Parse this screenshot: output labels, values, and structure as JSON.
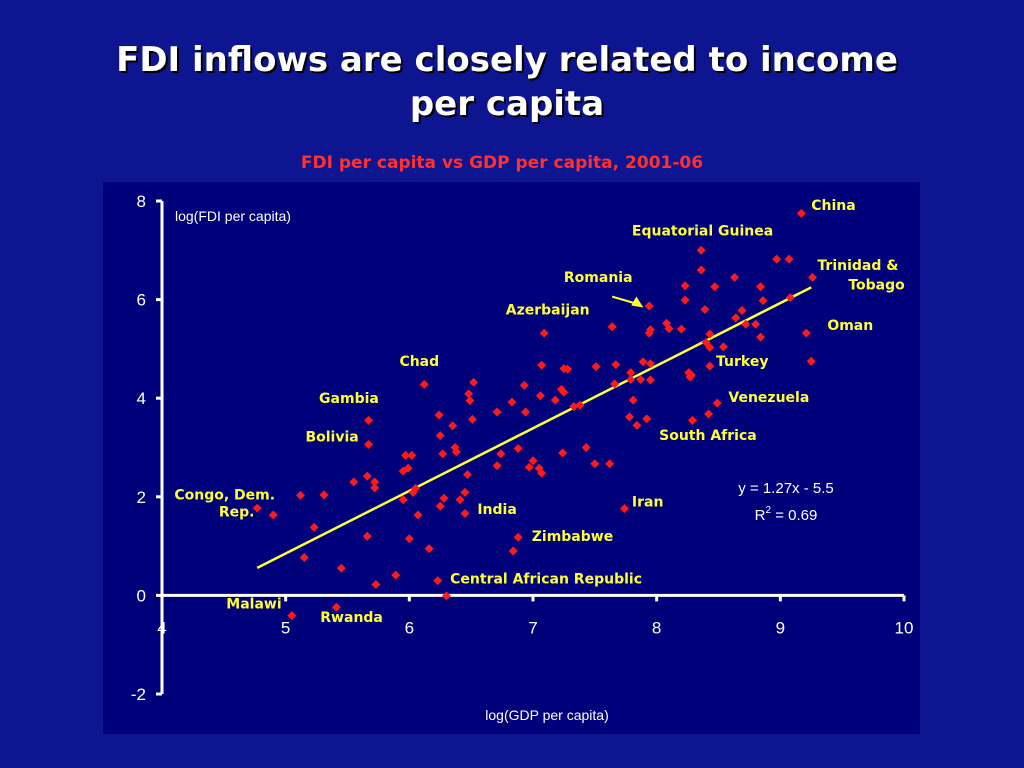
{
  "slide": {
    "title_line1": "FDI inflows are closely related to income",
    "title_line2": "per capita",
    "subtitle": "FDI per capita vs GDP per capita, 2001-06"
  },
  "colors": {
    "background": "#0d1591",
    "plot_panel": "#00007a",
    "title": "#ffffff",
    "subtitle": "#ff3030",
    "points": "#ff1a1a",
    "trendline": "#ffff33",
    "labels": "#ffff33",
    "axes": "#ffffff"
  },
  "chart_data": {
    "type": "scatter",
    "title": "FDI per capita vs GDP per capita, 2001-06",
    "xlabel": "log(GDP per capita)",
    "ylabel": "log(FDI per capita)",
    "xlim": [
      4,
      10
    ],
    "ylim": [
      -2,
      8
    ],
    "x_ticks": [
      "4",
      "5",
      "6",
      "7",
      "8",
      "9",
      "10"
    ],
    "y_ticks": [
      "-2",
      "0",
      "2",
      "4",
      "6",
      "8"
    ],
    "legend": "none",
    "grid": false,
    "trendline": {
      "equation": "y = 1.27x - 5.5",
      "r_squared_prefix": "R",
      "r_squared_sup": "2",
      "r_squared_value": " = 0.69",
      "slope": 1.27,
      "intercept": -5.5,
      "x_range": [
        4.77,
        9.25
      ]
    },
    "points": [
      {
        "x": 9.17,
        "y": 7.75
      },
      {
        "x": 8.36,
        "y": 7.0
      },
      {
        "x": 8.97,
        "y": 6.82
      },
      {
        "x": 9.07,
        "y": 6.82
      },
      {
        "x": 8.36,
        "y": 6.6
      },
      {
        "x": 8.63,
        "y": 6.45
      },
      {
        "x": 9.26,
        "y": 6.45
      },
      {
        "x": 8.23,
        "y": 6.28
      },
      {
        "x": 8.47,
        "y": 6.26
      },
      {
        "x": 8.84,
        "y": 6.26
      },
      {
        "x": 8.23,
        "y": 5.99
      },
      {
        "x": 8.86,
        "y": 5.98
      },
      {
        "x": 9.08,
        "y": 6.04
      },
      {
        "x": 7.94,
        "y": 5.87
      },
      {
        "x": 8.39,
        "y": 5.8
      },
      {
        "x": 8.69,
        "y": 5.78
      },
      {
        "x": 8.08,
        "y": 5.52
      },
      {
        "x": 8.72,
        "y": 5.5
      },
      {
        "x": 8.8,
        "y": 5.5
      },
      {
        "x": 7.64,
        "y": 5.45
      },
      {
        "x": 7.95,
        "y": 5.39
      },
      {
        "x": 8.1,
        "y": 5.41
      },
      {
        "x": 8.2,
        "y": 5.4
      },
      {
        "x": 7.94,
        "y": 5.32
      },
      {
        "x": 7.09,
        "y": 5.32
      },
      {
        "x": 8.43,
        "y": 5.3
      },
      {
        "x": 8.64,
        "y": 5.63
      },
      {
        "x": 9.21,
        "y": 5.32
      },
      {
        "x": 8.84,
        "y": 5.24
      },
      {
        "x": 8.4,
        "y": 5.13
      },
      {
        "x": 8.43,
        "y": 5.03
      },
      {
        "x": 8.54,
        "y": 5.04
      },
      {
        "x": 9.25,
        "y": 4.75
      },
      {
        "x": 7.89,
        "y": 4.74
      },
      {
        "x": 7.95,
        "y": 4.7
      },
      {
        "x": 7.67,
        "y": 4.68
      },
      {
        "x": 7.51,
        "y": 4.64
      },
      {
        "x": 7.07,
        "y": 4.67
      },
      {
        "x": 7.25,
        "y": 4.6
      },
      {
        "x": 7.28,
        "y": 4.59
      },
      {
        "x": 7.79,
        "y": 4.52
      },
      {
        "x": 8.26,
        "y": 4.52
      },
      {
        "x": 8.28,
        "y": 4.47
      },
      {
        "x": 8.27,
        "y": 4.43
      },
      {
        "x": 8.43,
        "y": 4.65
      },
      {
        "x": 7.79,
        "y": 4.38
      },
      {
        "x": 7.87,
        "y": 4.38
      },
      {
        "x": 7.95,
        "y": 4.37
      },
      {
        "x": 7.66,
        "y": 4.29
      },
      {
        "x": 6.52,
        "y": 4.32
      },
      {
        "x": 6.12,
        "y": 4.28
      },
      {
        "x": 6.93,
        "y": 4.26
      },
      {
        "x": 7.23,
        "y": 4.18
      },
      {
        "x": 7.25,
        "y": 4.12
      },
      {
        "x": 6.48,
        "y": 4.09
      },
      {
        "x": 7.06,
        "y": 4.05
      },
      {
        "x": 6.49,
        "y": 3.95
      },
      {
        "x": 7.18,
        "y": 3.96
      },
      {
        "x": 7.81,
        "y": 3.96
      },
      {
        "x": 7.38,
        "y": 3.86
      },
      {
        "x": 7.33,
        "y": 3.83
      },
      {
        "x": 6.83,
        "y": 3.92
      },
      {
        "x": 8.49,
        "y": 3.9
      },
      {
        "x": 6.94,
        "y": 3.72
      },
      {
        "x": 6.71,
        "y": 3.72
      },
      {
        "x": 8.42,
        "y": 3.68
      },
      {
        "x": 7.78,
        "y": 3.62
      },
      {
        "x": 6.24,
        "y": 3.66
      },
      {
        "x": 6.51,
        "y": 3.57
      },
      {
        "x": 7.92,
        "y": 3.58
      },
      {
        "x": 8.29,
        "y": 3.55
      },
      {
        "x": 5.67,
        "y": 3.55
      },
      {
        "x": 7.84,
        "y": 3.45
      },
      {
        "x": 6.35,
        "y": 3.44
      },
      {
        "x": 6.25,
        "y": 3.24
      },
      {
        "x": 5.67,
        "y": 3.06
      },
      {
        "x": 6.37,
        "y": 3.0
      },
      {
        "x": 7.43,
        "y": 3.0
      },
      {
        "x": 6.88,
        "y": 2.98
      },
      {
        "x": 6.27,
        "y": 2.87
      },
      {
        "x": 6.38,
        "y": 2.91
      },
      {
        "x": 7.24,
        "y": 2.89
      },
      {
        "x": 6.74,
        "y": 2.87
      },
      {
        "x": 5.97,
        "y": 2.84
      },
      {
        "x": 6.02,
        "y": 2.84
      },
      {
        "x": 7.0,
        "y": 2.73
      },
      {
        "x": 7.5,
        "y": 2.67
      },
      {
        "x": 7.62,
        "y": 2.67
      },
      {
        "x": 6.71,
        "y": 2.63
      },
      {
        "x": 6.97,
        "y": 2.6
      },
      {
        "x": 7.05,
        "y": 2.58
      },
      {
        "x": 5.99,
        "y": 2.58
      },
      {
        "x": 5.95,
        "y": 2.52
      },
      {
        "x": 7.07,
        "y": 2.48
      },
      {
        "x": 6.47,
        "y": 2.45
      },
      {
        "x": 5.66,
        "y": 2.42
      },
      {
        "x": 5.55,
        "y": 2.3
      },
      {
        "x": 5.72,
        "y": 2.3
      },
      {
        "x": 5.72,
        "y": 2.18
      },
      {
        "x": 6.05,
        "y": 2.17
      },
      {
        "x": 6.03,
        "y": 2.09
      },
      {
        "x": 6.45,
        "y": 2.09
      },
      {
        "x": 5.31,
        "y": 2.04
      },
      {
        "x": 5.12,
        "y": 2.03
      },
      {
        "x": 6.28,
        "y": 1.97
      },
      {
        "x": 6.41,
        "y": 1.94
      },
      {
        "x": 5.95,
        "y": 1.94
      },
      {
        "x": 6.25,
        "y": 1.81
      },
      {
        "x": 7.74,
        "y": 1.76
      },
      {
        "x": 4.77,
        "y": 1.77
      },
      {
        "x": 4.9,
        "y": 1.63
      },
      {
        "x": 6.07,
        "y": 1.63
      },
      {
        "x": 6.45,
        "y": 1.66
      },
      {
        "x": 5.23,
        "y": 1.38
      },
      {
        "x": 5.66,
        "y": 1.2
      },
      {
        "x": 6.0,
        "y": 1.15
      },
      {
        "x": 6.88,
        "y": 1.18
      },
      {
        "x": 6.16,
        "y": 0.95
      },
      {
        "x": 6.84,
        "y": 0.9
      },
      {
        "x": 5.15,
        "y": 0.77
      },
      {
        "x": 5.45,
        "y": 0.55
      },
      {
        "x": 5.89,
        "y": 0.41
      },
      {
        "x": 6.23,
        "y": 0.3
      },
      {
        "x": 5.73,
        "y": 0.22
      },
      {
        "x": 6.3,
        "y": -0.01
      },
      {
        "x": 5.41,
        "y": -0.24
      },
      {
        "x": 5.05,
        "y": -0.41
      }
    ],
    "annotations": [
      {
        "text": "China",
        "x": 9.25,
        "y": 7.82
      },
      {
        "text": "Equatorial Guinea",
        "x": 7.8,
        "y": 7.3
      },
      {
        "text": "Romania",
        "x": 7.25,
        "y": 6.36
      },
      {
        "text": "Trinidad &",
        "x": 9.3,
        "y": 6.6
      },
      {
        "text": "Tobago",
        "x": 9.55,
        "y": 6.2
      },
      {
        "text": "Oman",
        "x": 9.38,
        "y": 5.38
      },
      {
        "text": "Azerbaijan",
        "x": 6.78,
        "y": 5.7
      },
      {
        "text": "Chad",
        "x": 5.92,
        "y": 4.65
      },
      {
        "text": "Turkey",
        "x": 8.48,
        "y": 4.65
      },
      {
        "text": "Venezuela",
        "x": 8.58,
        "y": 3.92
      },
      {
        "text": "Gambia",
        "x": 5.27,
        "y": 3.9
      },
      {
        "text": "South Africa",
        "x": 8.02,
        "y": 3.15
      },
      {
        "text": "Bolivia",
        "x": 5.16,
        "y": 3.12
      },
      {
        "text": "Congo, Dem.",
        "x": 4.1,
        "y": 1.95
      },
      {
        "text": "Rep.",
        "x": 4.46,
        "y": 1.6
      },
      {
        "text": "Iran",
        "x": 7.8,
        "y": 1.8
      },
      {
        "text": "India",
        "x": 6.55,
        "y": 1.65
      },
      {
        "text": "Zimbabwe",
        "x": 6.99,
        "y": 1.1
      },
      {
        "text": "Central African Republic",
        "x": 6.33,
        "y": 0.24
      },
      {
        "text": "Malawi",
        "x": 4.52,
        "y": -0.27
      },
      {
        "text": "Rwanda",
        "x": 5.28,
        "y": -0.54
      }
    ]
  }
}
